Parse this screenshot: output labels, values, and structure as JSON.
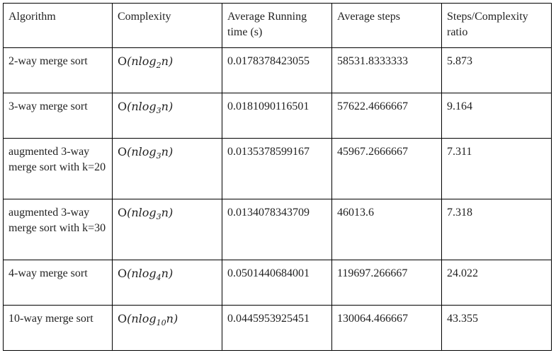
{
  "table": {
    "headers": [
      "Algorithm",
      "Complexity",
      "Average Running time (s)",
      "Average steps",
      "Steps/Complexity ratio"
    ],
    "rows": [
      {
        "algorithm": "2-way merge sort",
        "complexity": {
          "pre": "(nlog",
          "base": "2",
          "post": "n)"
        },
        "time": "0.0178378423055",
        "steps": "58531.8333333",
        "ratio": "5.873"
      },
      {
        "algorithm": "3-way merge sort",
        "complexity": {
          "pre": "(nlog",
          "base": "3",
          "post": "n)"
        },
        "time": "0.0181090116501",
        "steps": "57622.4666667",
        "ratio": "9.164"
      },
      {
        "algorithm": "augmented 3-way merge sort with k=20",
        "complexity": {
          "pre": "(nlog",
          "base": "3",
          "post": "n)"
        },
        "time": "0.0135378599167",
        "steps": "45967.2666667",
        "ratio": "7.311"
      },
      {
        "algorithm": "augmented 3-way merge sort with k=30",
        "complexity": {
          "pre": "(nlog",
          "base": "3",
          "post": "n)"
        },
        "time": "0.0134078343709",
        "steps": "46013.6",
        "ratio": "7.318"
      },
      {
        "algorithm": "4-way merge sort",
        "complexity": {
          "pre": "(nlog",
          "base": "4",
          "post": "n)"
        },
        "time": "0.0501440684001",
        "steps": "119697.266667",
        "ratio": "24.022"
      },
      {
        "algorithm": "10-way merge sort",
        "complexity": {
          "pre": "(nlog",
          "base": "10",
          "post": "n)"
        },
        "time": "0.0445953925451",
        "steps": "130064.466667",
        "ratio": "43.355"
      }
    ]
  }
}
